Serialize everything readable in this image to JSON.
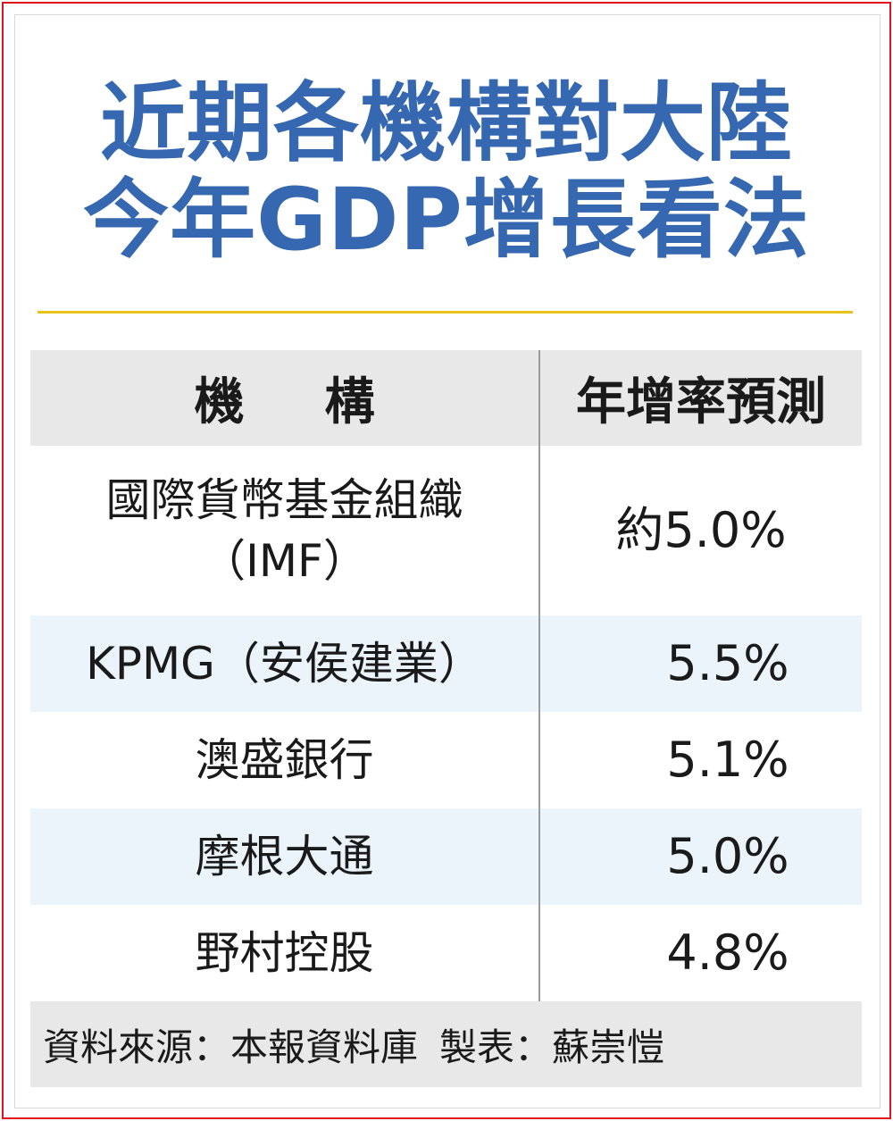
{
  "title": {
    "line1": "近期各機構對大陸",
    "line2": "今年GDP增長看法"
  },
  "table": {
    "headers": [
      "機構",
      "年增率預測"
    ],
    "rows": [
      {
        "institution": "國際貨幣基金組織",
        "institution_line2": "（IMF）",
        "forecast": "約5.0%"
      },
      {
        "institution": "KPMG（安侯建業）",
        "forecast": "5.5%"
      },
      {
        "institution": "澳盛銀行",
        "forecast": "5.1%"
      },
      {
        "institution": "摩根大通",
        "forecast": "5.0%"
      },
      {
        "institution": "野村控股",
        "forecast": "4.8%"
      }
    ]
  },
  "footer": {
    "source": "資料來源：本報資料庫",
    "author": "製表：蘇崇愷"
  },
  "colors": {
    "title": "#3568b0",
    "rule": "#e9c21e",
    "border": "#e0141e",
    "header_bg": "#e8e8e8",
    "row_shade": "#ebf3fb"
  }
}
